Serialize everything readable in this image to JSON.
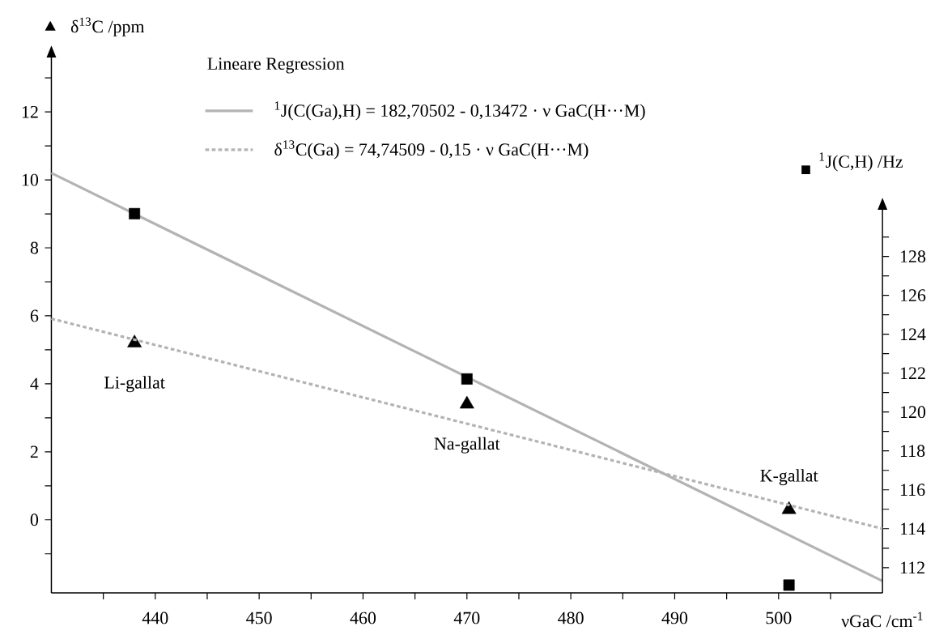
{
  "chart_data": {
    "type": "scatter",
    "xlabel": "νGaC /cm$^{-1}$",
    "ylabel": "δ$^{13}$C /ppm",
    "y2label": "$^{1}$J(C,H) /Hz",
    "legend_title": "Lineare Regression",
    "xlim": [
      430,
      510
    ],
    "ylim": [
      -2.15,
      13.6
    ],
    "y2lim": [
      110.7,
      130.4
    ],
    "xticks": [
      {
        "value": 435,
        "label": null
      },
      440,
      {
        "value": 445,
        "label": null
      },
      450,
      {
        "value": 455,
        "label": null
      },
      460,
      {
        "value": 465,
        "label": null
      },
      470,
      {
        "value": 475,
        "label": null
      },
      480,
      {
        "value": 485,
        "label": null
      },
      490,
      {
        "value": 495,
        "label": null
      },
      500,
      {
        "value": 505,
        "label": null
      }
    ],
    "yticks": [
      {
        "value": -1,
        "label": null
      },
      0,
      {
        "value": 1,
        "label": null
      },
      2,
      {
        "value": 3,
        "label": null
      },
      4,
      {
        "value": 5,
        "label": null
      },
      6,
      {
        "value": 7,
        "label": null
      },
      8,
      {
        "value": 9,
        "label": null
      },
      10,
      {
        "value": 11,
        "label": null
      },
      12,
      {
        "value": 13,
        "label": null
      }
    ],
    "y2ticks": [
      112,
      {
        "value": 113,
        "label": null
      },
      114,
      {
        "value": 115,
        "label": null
      },
      116,
      {
        "value": 117,
        "label": null
      },
      118,
      {
        "value": 119,
        "label": null
      },
      120,
      {
        "value": 121,
        "label": null
      },
      122,
      {
        "value": 123,
        "label": null
      },
      124,
      {
        "value": 125,
        "label": null
      },
      126,
      {
        "value": 127,
        "label": null
      },
      128,
      {
        "value": 129,
        "label": null
      }
    ],
    "legend": "top left",
    "series": [
      {
        "name": "$^{1}$J(C(Ga),H) = 182,70502 - 0,13472 · ν GaC(H···M)",
        "type": "line",
        "color": "#b3b3b3",
        "line_style": "solid",
        "marker": "none",
        "x": [
          430,
          510
        ],
        "values": [
          10.2,
          -1.8
        ]
      },
      {
        "name": "δ$^{13}$C(Ga) = 74,74509 - 0,15 · ν GaC(H···M)",
        "type": "line",
        "color": "#b3b3b3",
        "line_style": "dotted",
        "marker": "none",
        "axis": "y2",
        "x": [
          430,
          510
        ],
        "values": [
          124.8,
          114.0
        ]
      },
      {
        "color": "#000000",
        "marker": "triangle",
        "x": [
          438,
          470,
          501
        ],
        "values": [
          5.2,
          3.4,
          0.3
        ]
      },
      {
        "color": "#000000",
        "marker": "square",
        "axis": "y2",
        "x": [
          438,
          470,
          501
        ],
        "values": [
          130.2,
          121.7,
          111.1
        ]
      }
    ],
    "annotations": [
      "Li-gallat",
      "Na-gallat",
      "K-gallat"
    ]
  }
}
